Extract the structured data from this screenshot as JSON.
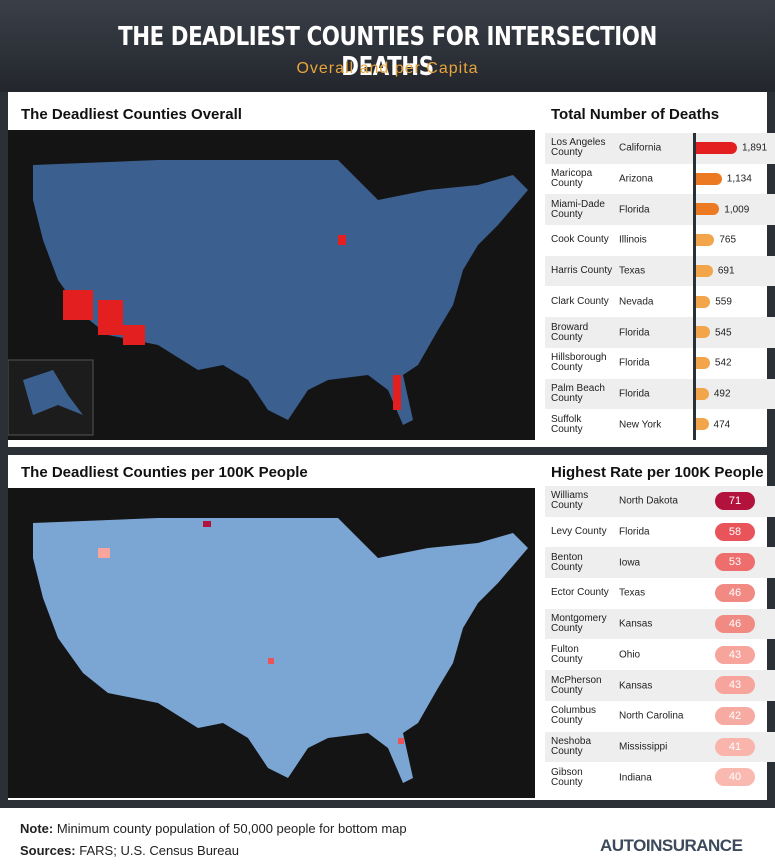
{
  "header": {
    "title": "THE DEADLIEST COUNTIES FOR INTERSECTION DEATHS",
    "subtitle": "Overall and per Capita"
  },
  "maps": [
    {
      "title": "The Deadliest Counties Overall"
    },
    {
      "title": "The Deadliest Counties per 100K People"
    }
  ],
  "chart_data": [
    {
      "type": "bar",
      "title": "Total Number of Deaths",
      "categories": [
        "Los Angeles County",
        "Maricopa County",
        "Miami-Dade County",
        "Cook County",
        "Harris County",
        "Clark County",
        "Broward County",
        "Hillsborough County",
        "Palm Beach County",
        "Suffolk County"
      ],
      "states": [
        "California",
        "Arizona",
        "Florida",
        "Illinois",
        "Texas",
        "Nevada",
        "Florida",
        "Florida",
        "Florida",
        "New York"
      ],
      "values": [
        1891,
        1134,
        1009,
        765,
        691,
        559,
        545,
        542,
        492,
        474
      ],
      "value_labels": [
        "1,891",
        "1,134",
        "1,009",
        "765",
        "691",
        "559",
        "545",
        "542",
        "492",
        "474"
      ],
      "colors": [
        "#e41f1f",
        "#ec7a22",
        "#ec7a22",
        "#f2a54a",
        "#f2a54a",
        "#f2a54a",
        "#f2a54a",
        "#f2a54a",
        "#f2a54a",
        "#f2a54a"
      ]
    },
    {
      "type": "pill",
      "title": "Highest Rate per 100K People",
      "categories": [
        "Williams County",
        "Levy County",
        "Benton County",
        "Ector County",
        "Montgomery County",
        "Fulton County",
        "McPherson County",
        "Columbus County",
        "Neshoba County",
        "Gibson County"
      ],
      "states": [
        "North Dakota",
        "Florida",
        "Iowa",
        "Texas",
        "Kansas",
        "Ohio",
        "Kansas",
        "North Carolina",
        "Mississippi",
        "Indiana"
      ],
      "values": [
        71,
        58,
        53,
        46,
        46,
        43,
        43,
        42,
        41,
        40
      ],
      "colors": [
        "#b3123c",
        "#e8545a",
        "#ee6e6e",
        "#f28a84",
        "#f28a84",
        "#f6a49c",
        "#f6a49c",
        "#f7aaa2",
        "#f9b4ac",
        "#f9b8b0"
      ]
    }
  ],
  "footer": {
    "note_label": "Note:",
    "note": "Minimum county population of 50,000 people for bottom map",
    "sources_label": "Sources:",
    "sources": "FARS; U.S. Census Bureau",
    "logo": "AUTOINSURANCE"
  }
}
